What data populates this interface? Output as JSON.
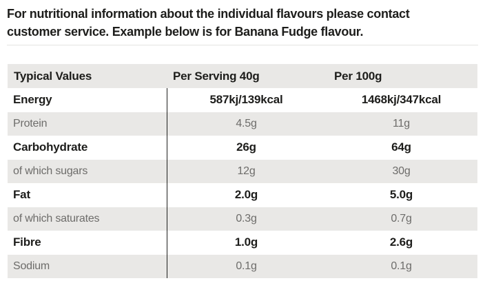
{
  "intro": {
    "line1": "For nutritional information about the individual flavours please contact",
    "line2": "customer service. Example below is for Banana Fudge flavour."
  },
  "colors": {
    "text_dark": "#1d1d1b",
    "text_gray": "#6d6c6a",
    "band_gray": "#e9e8e6",
    "rule_gray": "#e4e3e1",
    "divider": "#1d1d1b"
  },
  "table": {
    "headers": {
      "label": "Typical Values",
      "per_serving": "Per Serving 40g",
      "per_100g": "Per 100g"
    },
    "rows": [
      {
        "label": "Energy",
        "per_serving": "587kj/139kcal",
        "per_100g": "1468kj/347kcal",
        "emphasis": true
      },
      {
        "label": "Protein",
        "per_serving": "4.5g",
        "per_100g": "11g",
        "emphasis": false
      },
      {
        "label": "Carbohydrate",
        "per_serving": "26g",
        "per_100g": "64g",
        "emphasis": true
      },
      {
        "label": "of which sugars",
        "per_serving": "12g",
        "per_100g": "30g",
        "emphasis": false
      },
      {
        "label": "Fat",
        "per_serving": "2.0g",
        "per_100g": "5.0g",
        "emphasis": true
      },
      {
        "label": "of which saturates",
        "per_serving": "0.3g",
        "per_100g": "0.7g",
        "emphasis": false
      },
      {
        "label": "Fibre",
        "per_serving": "1.0g",
        "per_100g": "2.6g",
        "emphasis": true
      },
      {
        "label": "Sodium",
        "per_serving": "0.1g",
        "per_100g": "0.1g",
        "emphasis": false
      }
    ]
  }
}
